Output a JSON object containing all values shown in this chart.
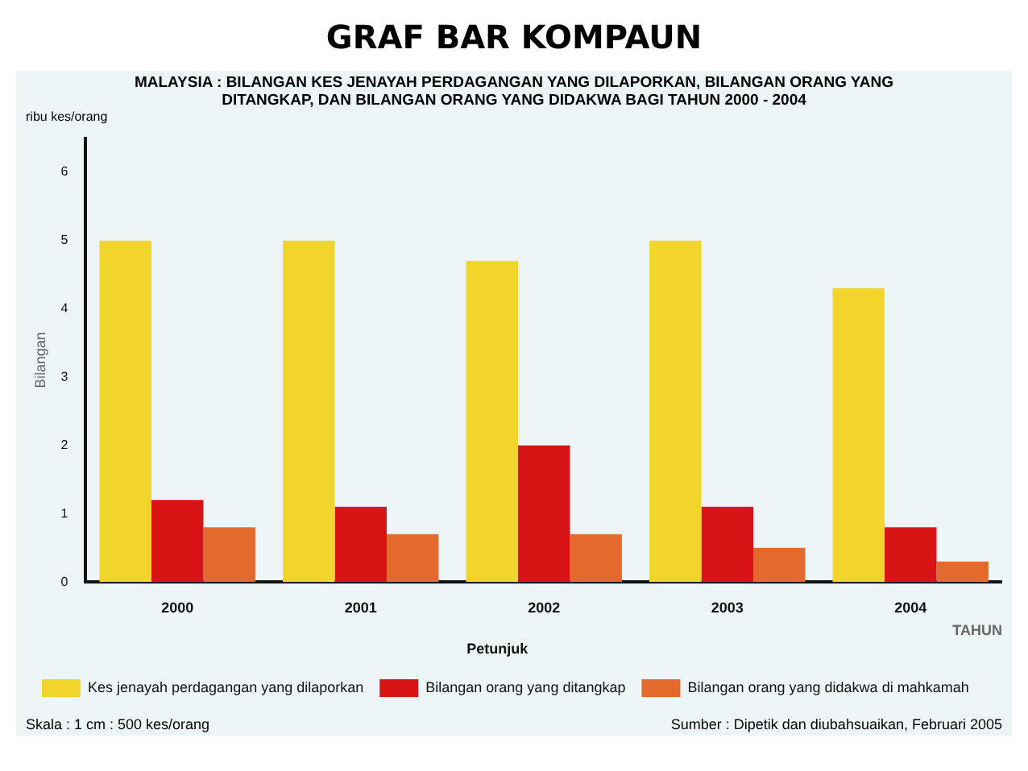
{
  "chart_data": {
    "type": "bar",
    "title": "GRAF BAR KOMPAUN",
    "subtitle": "MALAYSIA : BILANGAN KES JENAYAH PERDAGANGAN YANG DILAPORKAN, BILANGAN ORANG YANG DITANGKAP, DAN BILANGAN ORANG YANG DIDAKWA BAGI TAHUN 2000 - 2004",
    "xlabel": "TAHUN",
    "ylabel": "Bilangan",
    "legend_title": "Petunjuk",
    "categories": [
      "2000",
      "2001",
      "2002",
      "2003",
      "2004"
    ],
    "series": [
      {
        "name": "Kes jenayah perdagangan yang dilaporkan",
        "color": "#f2d52a",
        "values": [
          5.0,
          5.0,
          4.7,
          5.0,
          4.3
        ]
      },
      {
        "name": "Bilangan orang yang ditangkap",
        "color": "#d81414",
        "values": [
          1.2,
          1.1,
          2.0,
          1.1,
          0.8
        ]
      },
      {
        "name": "Bilangan orang yang didakwa di mahkamah",
        "color": "#e4692c",
        "values": [
          0.8,
          0.7,
          0.7,
          0.5,
          0.3
        ]
      }
    ],
    "ylim": [
      0,
      6.5
    ],
    "yticks": [
      0,
      1,
      2,
      3,
      4,
      5,
      6
    ],
    "grid": false,
    "legend": "bottom",
    "annotations": [
      "ribu kes/orang",
      "Skala : 1 cm : 500 kes/orang",
      "Sumber : Dipetik dan diubahsuaikan, Februari 2005"
    ]
  }
}
